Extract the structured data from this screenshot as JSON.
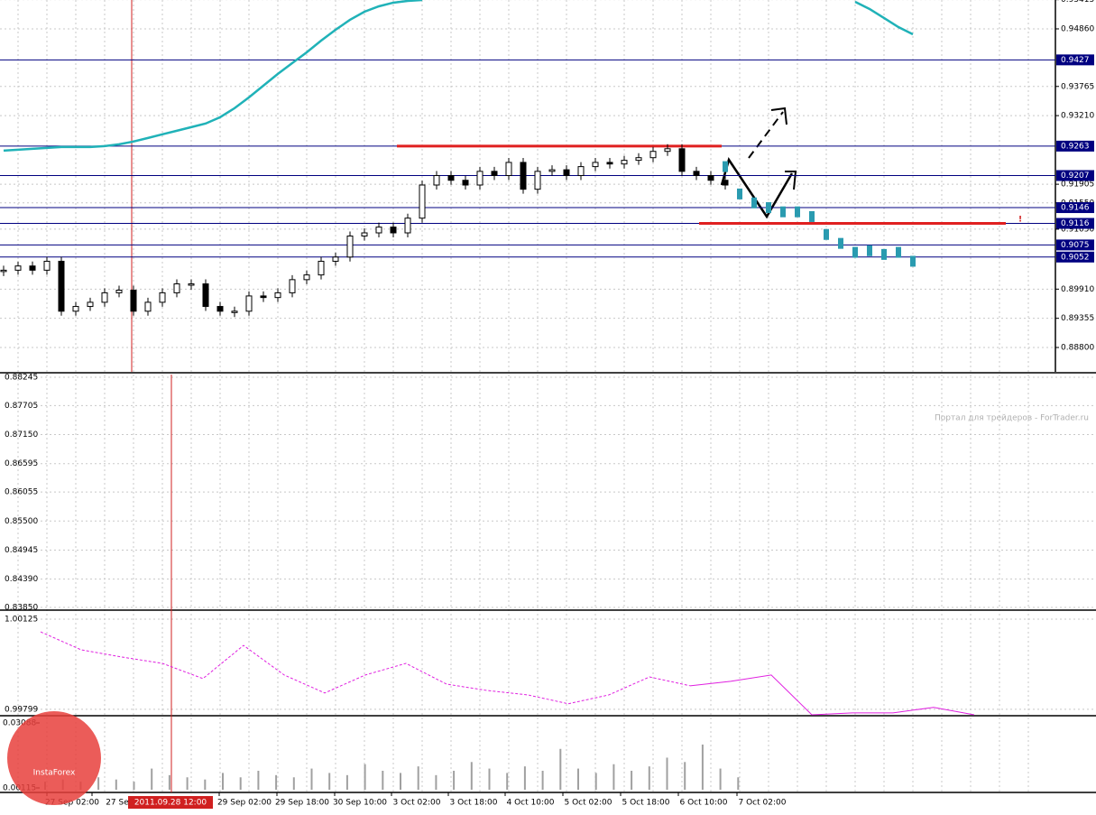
{
  "main_pane": {
    "type": "candlestick",
    "ylim": [
      0.888,
      0.95409
    ],
    "yticks": [
      {
        "value": 0.95415,
        "label": "0.95415"
      },
      {
        "value": 0.9486,
        "label": "0.94860"
      },
      {
        "value": 0.93765,
        "label": "0.93765"
      },
      {
        "value": 0.9321,
        "label": "0.93210"
      },
      {
        "value": 0.91905,
        "label": "0.91905"
      },
      {
        "value": 0.9155,
        "label": "0.91550"
      },
      {
        "value": 0.9105,
        "label": "0.91050"
      },
      {
        "value": 0.8991,
        "label": "0.89910"
      },
      {
        "value": 0.89355,
        "label": "0.89355"
      },
      {
        "value": 0.888,
        "label": "0.88800"
      }
    ],
    "levels": [
      0.9427,
      0.9263,
      0.9207,
      0.9146,
      0.9116,
      0.9075,
      0.9052
    ],
    "level_color": "#000080",
    "resistance_lines": [
      0.9263,
      0.9116
    ],
    "resistance_color": "#e02020",
    "alert_mark": "!",
    "price": {
      "color": "#000000",
      "values": [
        0.9027,
        0.9035,
        0.9027,
        0.9044,
        0.8949,
        0.8958,
        0.8966,
        0.8984,
        0.8989,
        0.8949,
        0.8966,
        0.8984,
        0.9001,
        0.9001,
        0.8958,
        0.8949,
        0.8949,
        0.8978,
        0.8975,
        0.8984,
        0.9009,
        0.9018,
        0.9044,
        0.9052,
        0.9092,
        0.9098,
        0.9109,
        0.9098,
        0.9126,
        0.9189,
        0.9207,
        0.9198,
        0.9189,
        0.9215,
        0.9207,
        0.9232,
        0.9181,
        0.9215,
        0.9218,
        0.9207,
        0.9224,
        0.9232,
        0.9229,
        0.9236,
        0.9241,
        0.9253,
        0.9258,
        0.9215,
        0.9207,
        0.9198,
        0.9189
      ]
    },
    "forecast": {
      "color": "#2a9bb0",
      "values": [
        0.9224,
        0.9172,
        0.9155,
        0.9146,
        0.9138,
        0.9138,
        0.9129,
        0.9095,
        0.9078,
        0.9061,
        0.9064,
        0.9057,
        0.9061,
        0.9044
      ]
    },
    "moving_average": {
      "color": "#20b2b8",
      "values": [
        0.92545,
        0.92562,
        0.92579,
        0.92596,
        0.92614,
        0.92614,
        0.92614,
        0.92631,
        0.92665,
        0.92717,
        0.92785,
        0.92854,
        0.92922,
        0.92991,
        0.9306,
        0.9318,
        0.93351,
        0.93557,
        0.9378,
        0.94003,
        0.94209,
        0.94414,
        0.94637,
        0.94843,
        0.95032,
        0.95186,
        0.95289,
        0.95358,
        0.95392,
        0.95409,
        null,
        null,
        null,
        null,
        null,
        null,
        null,
        null,
        null,
        null,
        null,
        null,
        null,
        null,
        null,
        null,
        null,
        null,
        null,
        null,
        null,
        null,
        null,
        null,
        null,
        null,
        null,
        null,
        null,
        0.95375,
        0.95238,
        0.95066,
        0.94894,
        0.94757
      ]
    }
  },
  "empty_pane": {
    "yticks": [
      {
        "value": 0.88245,
        "label": "0.88245"
      },
      {
        "value": 0.87705,
        "label": "0.87705"
      },
      {
        "value": 0.8715,
        "label": "0.87150"
      },
      {
        "value": 0.86595,
        "label": "0.86595"
      },
      {
        "value": 0.86055,
        "label": "0.86055"
      },
      {
        "value": 0.855,
        "label": "0.85500"
      },
      {
        "value": 0.84945,
        "label": "0.84945"
      },
      {
        "value": 0.8439,
        "label": "0.84390"
      },
      {
        "value": 0.8385,
        "label": "0.83850"
      }
    ],
    "ylim": [
      0.8385,
      0.88245
    ],
    "watermark": "Портал для трейдеров - ForTrader.ru"
  },
  "oscillator_pane": {
    "type": "line",
    "ylim": [
      0.99779,
      1.00151
    ],
    "yticks": [
      {
        "value": 1.00125,
        "label": "1.00125"
      },
      0.99799
    ],
    "series": [
      {
        "color": "#e020e0",
        "dashed": true,
        "values": [
          1.00079,
          1.00014,
          0.99988,
          0.99965,
          0.9991,
          1.0003,
          0.99923,
          0.99858,
          0.99923,
          0.99965,
          0.9989,
          0.99867,
          0.99851,
          0.99819,
          0.99851,
          0.99916,
          0.99884,
          null,
          null,
          null,
          null,
          null,
          null,
          null
        ]
      },
      {
        "color": "#e020e0",
        "dashed": false,
        "values": [
          null,
          null,
          null,
          null,
          null,
          null,
          null,
          null,
          null,
          null,
          null,
          null,
          null,
          null,
          null,
          null,
          0.99884,
          0.999,
          0.99923,
          0.99779,
          0.99786,
          0.99786,
          0.99806,
          0.99779
        ]
      }
    ]
  },
  "volume_pane": {
    "type": "bar",
    "ylim": [
      0.00032,
      0.03336
    ],
    "yticks": [
      {
        "value": 0.03088,
        "label": "0.03088"
      },
      0.00115
    ],
    "color": "#a0a0a0",
    "values": [
      0.004,
      0.005,
      0.004,
      0.006,
      0.005,
      0.004,
      0.01,
      0.007,
      0.006,
      0.005,
      0.008,
      0.006,
      0.009,
      0.007,
      0.006,
      0.01,
      0.008,
      0.007,
      0.012,
      0.009,
      0.008,
      0.011,
      0.007,
      0.009,
      0.013,
      0.01,
      0.008,
      0.011,
      0.009,
      0.019,
      0.01,
      0.008,
      0.012,
      0.009,
      0.011,
      0.015,
      0.013,
      0.021,
      0.01,
      0.006
    ]
  },
  "time_axis": {
    "labels": [
      "27 Sep 02:00",
      "27 Se",
      "29 Sep 02:00",
      "29 Sep 18:00",
      "30 Sep 10:00",
      "3 Oct 02:00",
      "3 Oct 18:00",
      "4 Oct 10:00",
      "5 Oct 02:00",
      "5 Oct 18:00",
      "6 Oct 10:00",
      "7 Oct 02:00"
    ],
    "cursor_label": "2011.09.28 12:00"
  },
  "logo": "InstaForex"
}
